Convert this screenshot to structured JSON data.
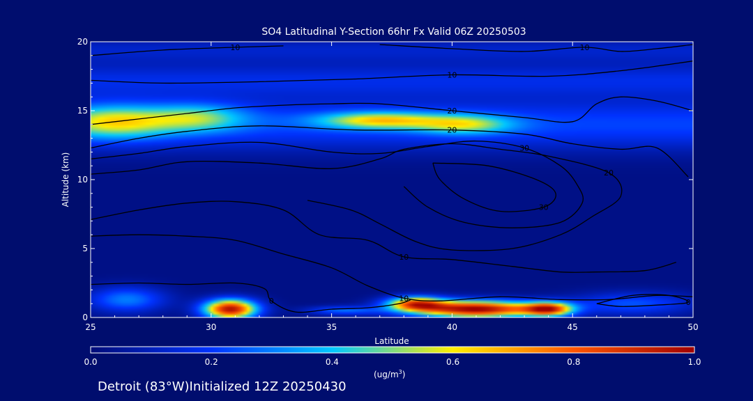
{
  "chart_data": {
    "type": "heatmap",
    "title": "SO4 Latitudinal Y-Section 66hr  Fx Valid 06Z 20250503",
    "xlabel": "Latitude",
    "ylabel": "Altitude (km)",
    "xlim": [
      25,
      50
    ],
    "ylim": [
      0,
      20
    ],
    "xticks": [
      "25",
      "30",
      "35",
      "40",
      "45",
      "50"
    ],
    "yticks": [
      "0",
      "5",
      "10",
      "15",
      "20"
    ],
    "colorbar": {
      "range": [
        0.0,
        1.0
      ],
      "ticks": [
        "0.0",
        "0.2",
        "0.4",
        "0.6",
        "0.8",
        "1.0"
      ],
      "unit_base": "(ug/m",
      "unit_exp": "3",
      "unit_close": ")",
      "colors": [
        "#000c78",
        "#0033ff",
        "#00c8ff",
        "#ffee00",
        "#ff5500",
        "#a00000"
      ]
    },
    "footer": "Detroit (83°W)Initialized 12Z 20250430",
    "field_blobs": [
      {
        "lat": 30.8,
        "alt": 0.6,
        "slat": 1.1,
        "salt": 0.7,
        "v": 0.95
      },
      {
        "lat": 41.0,
        "alt": 0.6,
        "slat": 2.6,
        "salt": 0.6,
        "v": 1.0
      },
      {
        "lat": 38.5,
        "alt": 1.0,
        "slat": 1.2,
        "salt": 0.5,
        "v": 0.7
      },
      {
        "lat": 44.0,
        "alt": 0.6,
        "slat": 1.0,
        "salt": 0.5,
        "v": 0.75
      },
      {
        "lat": 26.5,
        "alt": 1.3,
        "slat": 1.6,
        "salt": 0.9,
        "v": 0.28
      },
      {
        "lat": 35.5,
        "alt": 0.5,
        "slat": 1.5,
        "salt": 0.3,
        "v": 0.25
      },
      {
        "lat": 47.5,
        "alt": 1.0,
        "slat": 2.5,
        "salt": 0.8,
        "v": 0.22
      },
      {
        "lat": 26.0,
        "alt": 14.2,
        "slat": 2.5,
        "salt": 1.2,
        "v": 0.42
      },
      {
        "lat": 37.0,
        "alt": 14.3,
        "slat": 2.5,
        "salt": 0.6,
        "v": 0.45
      },
      {
        "lat": 40.5,
        "alt": 14.0,
        "slat": 2.0,
        "salt": 0.7,
        "v": 0.36
      },
      {
        "lat": 29.5,
        "alt": 14.5,
        "slat": 2.0,
        "salt": 1.0,
        "v": 0.3
      }
    ],
    "field_bands": [
      {
        "alt": 14.0,
        "salt": 1.8,
        "v": 0.2
      },
      {
        "alt": 17.2,
        "salt": 1.2,
        "v": 0.14
      },
      {
        "alt": 19.4,
        "salt": 0.9,
        "v": 0.1
      }
    ],
    "contours": [
      {
        "label": "10",
        "points": [
          [
            25,
            19.0
          ],
          [
            28,
            19.4
          ],
          [
            31,
            19.6
          ],
          [
            33,
            19.7
          ]
        ]
      },
      {
        "label": "10",
        "points": [
          [
            37,
            19.8
          ],
          [
            40,
            19.5
          ],
          [
            43,
            19.3
          ],
          [
            45.5,
            19.6
          ],
          [
            47,
            19.3
          ],
          [
            48.5,
            19.5
          ],
          [
            50,
            19.8
          ]
        ]
      },
      {
        "label": "10",
        "points": [
          [
            25,
            17.2
          ],
          [
            28,
            17.0
          ],
          [
            32,
            17.1
          ],
          [
            36,
            17.3
          ],
          [
            40,
            17.6
          ],
          [
            44,
            17.5
          ],
          [
            47,
            17.9
          ],
          [
            50,
            18.6
          ]
        ]
      },
      {
        "label": "20",
        "points": [
          [
            25,
            14.0
          ],
          [
            27,
            14.4
          ],
          [
            29,
            14.8
          ],
          [
            31,
            15.2
          ],
          [
            33,
            15.4
          ],
          [
            35,
            15.5
          ],
          [
            37,
            15.5
          ],
          [
            40,
            15.0
          ],
          [
            43,
            14.5
          ],
          [
            45,
            14.2
          ],
          [
            46,
            15.5
          ],
          [
            47,
            16.0
          ],
          [
            48.5,
            15.7
          ],
          [
            50,
            15.0
          ]
        ]
      },
      {
        "label": "20",
        "points": [
          [
            25,
            12.3
          ],
          [
            27,
            13.0
          ],
          [
            29,
            13.5
          ],
          [
            32,
            13.9
          ],
          [
            36,
            13.6
          ],
          [
            40,
            13.6
          ],
          [
            43,
            13.3
          ],
          [
            45,
            12.6
          ],
          [
            47,
            12.2
          ],
          [
            48.5,
            12.3
          ],
          [
            49.8,
            10.2
          ]
        ]
      },
      {
        "label": "30",
        "points": [
          [
            25,
            11.5
          ],
          [
            27,
            11.9
          ],
          [
            29,
            12.4
          ],
          [
            32,
            12.7
          ],
          [
            35,
            12.0
          ],
          [
            37,
            11.9
          ],
          [
            39,
            12.4
          ],
          [
            41,
            12.8
          ],
          [
            43,
            12.3
          ],
          [
            44.5,
            11.0
          ],
          [
            45.2,
            9.6
          ],
          [
            45.4,
            8.3
          ],
          [
            44.5,
            6.9
          ],
          [
            42.5,
            6.5
          ],
          [
            40.5,
            6.9
          ],
          [
            39,
            8.0
          ],
          [
            38,
            9.5
          ]
        ]
      },
      {
        "label": "30",
        "points": [
          [
            39.2,
            11.2
          ],
          [
            41.5,
            11.0
          ],
          [
            43.5,
            10.0
          ],
          [
            44.3,
            9.0
          ],
          [
            43.8,
            8.0
          ],
          [
            42,
            7.7
          ],
          [
            40.5,
            8.6
          ],
          [
            39.5,
            10.0
          ],
          [
            39.2,
            11.2
          ]
        ]
      },
      {
        "label": "20",
        "points": [
          [
            25,
            10.4
          ],
          [
            27,
            10.7
          ],
          [
            29,
            11.3
          ],
          [
            32,
            11.2
          ],
          [
            35,
            10.8
          ],
          [
            37,
            11.5
          ],
          [
            38,
            12.2
          ],
          [
            40,
            12.6
          ],
          [
            42,
            12.2
          ],
          [
            44,
            11.7
          ],
          [
            46.5,
            10.5
          ],
          [
            47,
            8.8
          ],
          [
            45.8,
            7.3
          ],
          [
            44.5,
            6.0
          ],
          [
            42.5,
            5.0
          ],
          [
            40,
            4.9
          ],
          [
            38.5,
            5.5
          ],
          [
            37,
            6.8
          ],
          [
            35.8,
            7.8
          ],
          [
            34,
            8.5
          ]
        ]
      },
      {
        "label": "10",
        "points": [
          [
            25,
            7.1
          ],
          [
            27,
            7.8
          ],
          [
            29,
            8.3
          ],
          [
            31,
            8.4
          ],
          [
            33,
            7.8
          ],
          [
            34.5,
            6.0
          ],
          [
            36.5,
            5.6
          ],
          [
            38,
            4.4
          ],
          [
            40,
            4.2
          ],
          [
            42.5,
            3.7
          ],
          [
            44.5,
            3.3
          ],
          [
            46,
            3.3
          ],
          [
            48,
            3.4
          ],
          [
            49.3,
            4.0
          ]
        ]
      },
      {
        "label": "10",
        "points": [
          [
            25,
            5.9
          ],
          [
            27,
            6.0
          ],
          [
            29,
            5.9
          ],
          [
            31,
            5.6
          ],
          [
            33,
            4.6
          ],
          [
            35,
            3.6
          ],
          [
            36.5,
            2.3
          ],
          [
            38,
            1.4
          ],
          [
            39.5,
            1.2
          ],
          [
            42,
            1.5
          ],
          [
            44.5,
            1.3
          ],
          [
            46.5,
            1.3
          ],
          [
            48.5,
            1.6
          ],
          [
            50,
            1.5
          ]
        ]
      },
      {
        "label": "0",
        "points": [
          [
            25,
            2.4
          ],
          [
            27,
            2.5
          ],
          [
            29,
            2.4
          ],
          [
            31,
            2.5
          ],
          [
            32.2,
            2.1
          ],
          [
            32.5,
            1.2
          ],
          [
            33.5,
            0.4
          ],
          [
            35,
            0.6
          ],
          [
            36.5,
            0.7
          ],
          [
            37.8,
            1.0
          ],
          [
            38.3,
            1.3
          ]
        ]
      },
      {
        "label": "0",
        "points": [
          [
            46,
            1.0
          ],
          [
            47.5,
            1.6
          ],
          [
            49,
            1.6
          ],
          [
            49.8,
            1.1
          ],
          [
            48.5,
            0.9
          ],
          [
            47,
            0.8
          ],
          [
            46,
            1.0
          ]
        ]
      }
    ]
  }
}
